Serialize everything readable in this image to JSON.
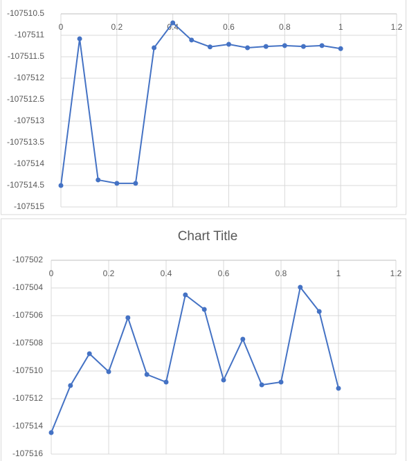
{
  "chart_data": [
    {
      "type": "line",
      "x": [
        0,
        0.067,
        0.133,
        0.2,
        0.267,
        0.333,
        0.4,
        0.467,
        0.533,
        0.6,
        0.667,
        0.733,
        0.8,
        0.867,
        0.933,
        1
      ],
      "series": [
        {
          "color": "#4472c4",
          "values": [
            -107514.5,
            -107511.08,
            -107514.37,
            -107514.45,
            -107514.45,
            -107511.29,
            -107510.71,
            -107511.11,
            -107511.27,
            -107511.21,
            -107511.29,
            -107511.26,
            -107511.24,
            -107511.26,
            -107511.24,
            -107511.31
          ]
        }
      ],
      "xlim": [
        0,
        1.2
      ],
      "xticks": [
        0,
        0.2,
        0.4,
        0.6,
        0.8,
        1,
        1.2
      ],
      "ylim": [
        -107515,
        -107510.5
      ],
      "yticks": [
        -107510.5,
        -107511,
        -107511.5,
        -107512,
        -107512.5,
        -107513,
        -107513.5,
        -107514,
        -107514.5,
        -107515
      ],
      "grid": true
    },
    {
      "type": "line",
      "title": "Chart Title",
      "x": [
        0,
        0.067,
        0.133,
        0.2,
        0.267,
        0.333,
        0.4,
        0.467,
        0.533,
        0.6,
        0.667,
        0.733,
        0.8,
        0.867,
        0.933,
        1
      ],
      "series": [
        {
          "color": "#4472c4",
          "values": [
            -107514.45,
            -107511.05,
            -107508.75,
            -107510.05,
            -107506.15,
            -107510.25,
            -107510.8,
            -107504.5,
            -107505.55,
            -107510.65,
            -107507.7,
            -107511,
            -107510.8,
            -107503.95,
            -107505.7,
            -107511.25
          ]
        }
      ],
      "xlim": [
        0,
        1.2
      ],
      "xticks": [
        0,
        0.2,
        0.4,
        0.6,
        0.8,
        1,
        1.2
      ],
      "ylim": [
        -107516,
        -107502
      ],
      "yticks": [
        -107502,
        -107504,
        -107506,
        -107508,
        -107510,
        -107512,
        -107514,
        -107516
      ],
      "grid": true
    }
  ]
}
